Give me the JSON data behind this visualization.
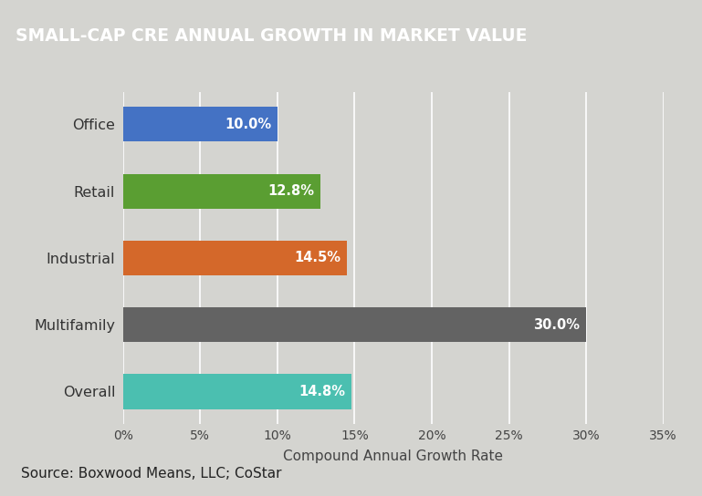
{
  "title": "SMALL-CAP CRE ANNUAL GROWTH IN MARKET VALUE",
  "categories": [
    "Overall",
    "Multifamily",
    "Industrial",
    "Retail",
    "Office"
  ],
  "values": [
    14.8,
    30.0,
    14.5,
    12.8,
    10.0
  ],
  "bar_colors": [
    "#4BBFB0",
    "#636363",
    "#D4682A",
    "#5A9E32",
    "#4472C4"
  ],
  "xlabel": "Compound Annual Growth Rate",
  "xlim": [
    0,
    35
  ],
  "xtick_values": [
    0,
    5,
    10,
    15,
    20,
    25,
    30,
    35
  ],
  "xtick_labels": [
    "0%",
    "5%",
    "10%",
    "15%",
    "20%",
    "25%",
    "30%",
    "35%"
  ],
  "title_bg_color": "#636669",
  "plot_bg_color": "#d4d4d0",
  "fig_bg_color": "#d4d4d0",
  "title_text_color": "#ffffff",
  "label_text_color": "#ffffff",
  "source_text": "Source: Boxwood Means, LLC; CoStar",
  "bar_height": 0.52,
  "label_fontsize": 10.5,
  "title_fontsize": 13.5,
  "axis_label_fontsize": 11,
  "tick_fontsize": 10,
  "source_fontsize": 11
}
